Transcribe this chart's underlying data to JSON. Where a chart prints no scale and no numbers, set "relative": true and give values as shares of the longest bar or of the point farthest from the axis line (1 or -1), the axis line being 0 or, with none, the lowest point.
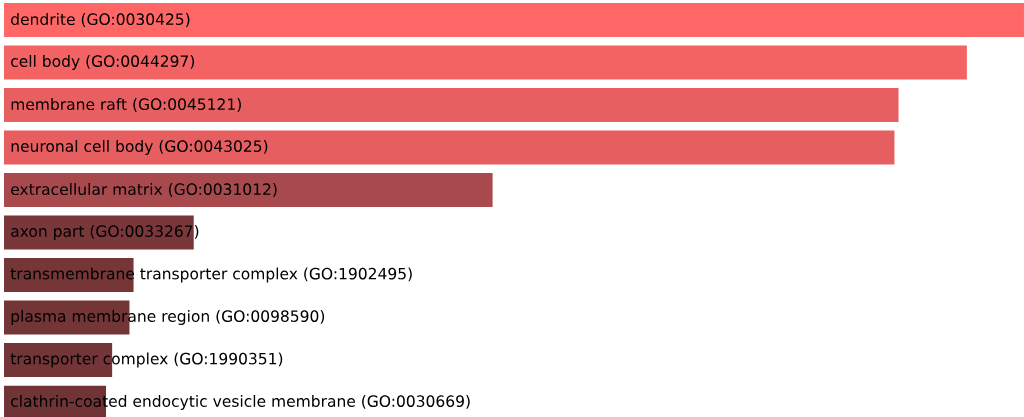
{
  "chart_data": {
    "type": "bar",
    "orientation": "horizontal",
    "relative": true,
    "categories": [
      "dendrite (GO:0030425)",
      "cell body (GO:0044297)",
      "membrane raft (GO:0045121)",
      "neuronal cell body (GO:0043025)",
      "extracellular matrix (GO:0031012)",
      "axon part (GO:0033267)",
      "transmembrane transporter complex (GO:1902495)",
      "plasma membrane region (GO:0098590)",
      "transporter complex (GO:1990351)",
      "clathrin-coated endocytic vesicle membrane (GO:0030669)"
    ],
    "values": [
      1,
      0.944,
      0.877,
      0.873,
      0.479,
      0.186,
      0.127,
      0.123,
      0.106,
      0.1
    ],
    "colors": [
      "#ff6666",
      "#f46364",
      "#e85f61",
      "#e65e60",
      "#a84a4d",
      "#7a3739",
      "#763638",
      "#743537",
      "#733537",
      "#713436"
    ]
  }
}
